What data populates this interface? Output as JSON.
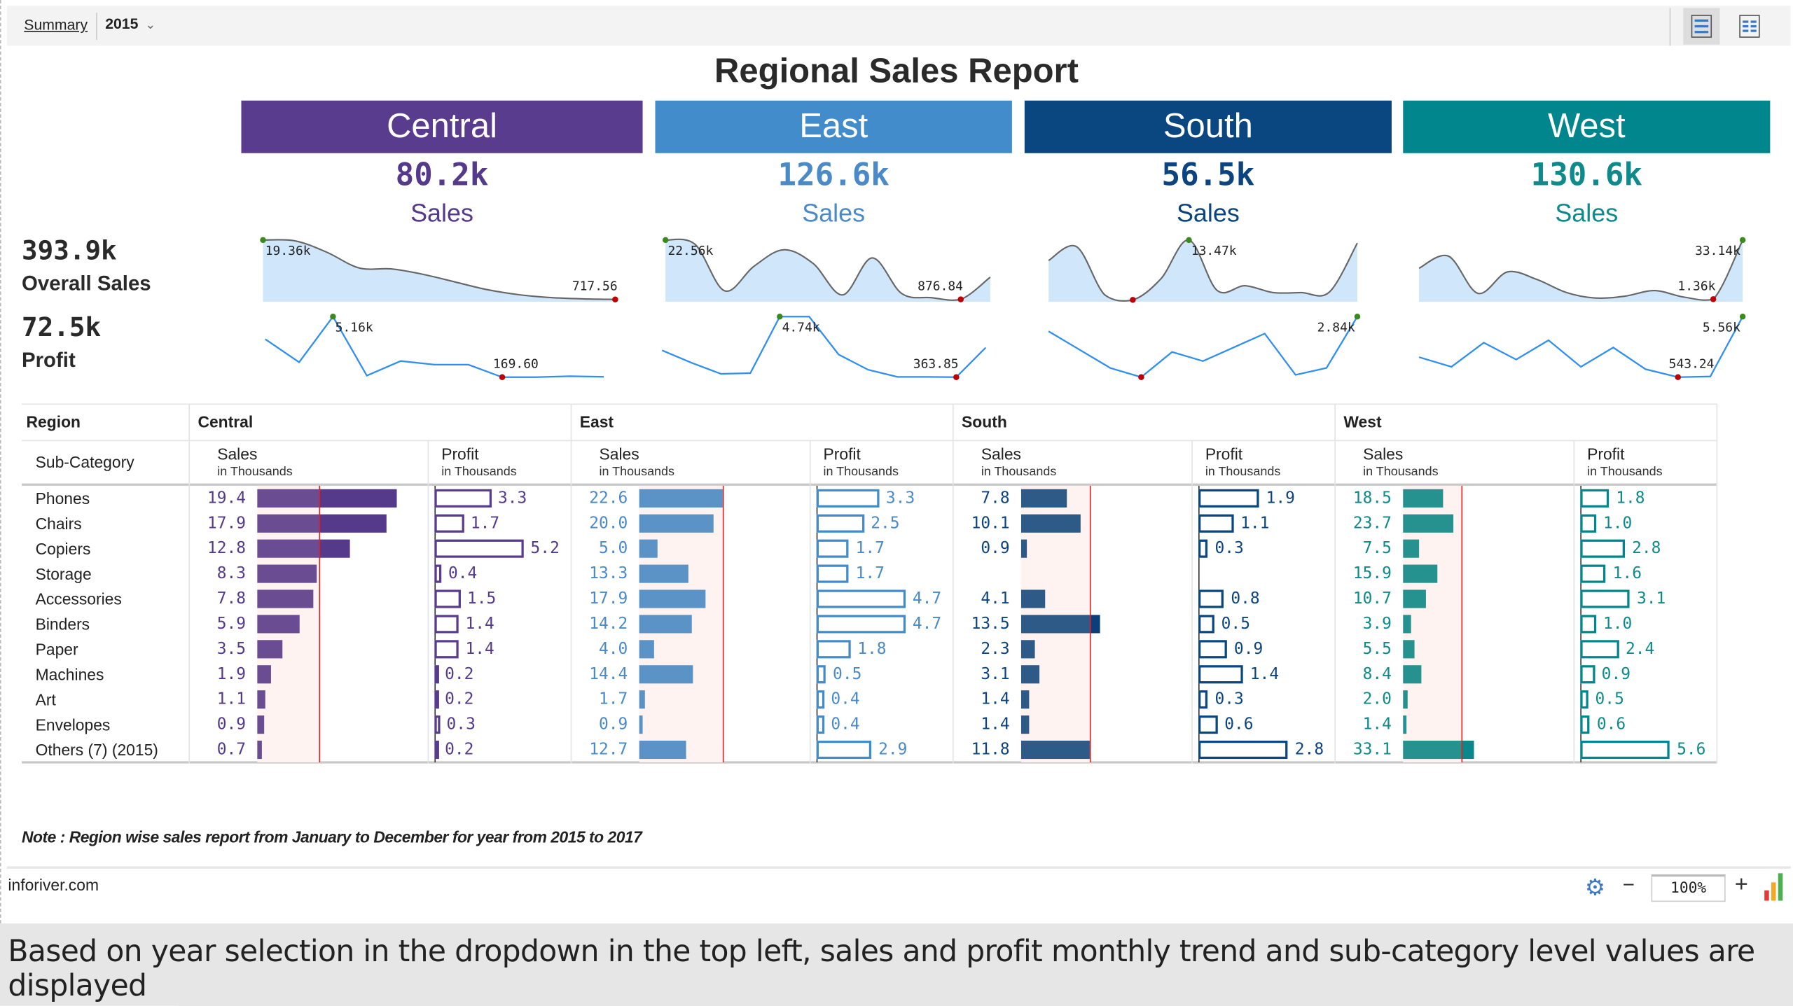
{
  "toolbar": {
    "breadcrumb": "Summary",
    "year_selected": "2015",
    "views": [
      "single-column-view-icon",
      "two-column-view-icon"
    ]
  },
  "title": "Regional Sales Report",
  "overall": {
    "sales_value": "393.9k",
    "sales_label": "Overall Sales",
    "profit_value": "72.5k",
    "profit_label": "Profit"
  },
  "regions": [
    {
      "name": "Central",
      "sales_total": "80.2k",
      "sales_label": "Sales",
      "color": "#5a3c8f",
      "text_color": "#553a8c",
      "bar_color": "#6a4c93",
      "bar_dark": "#553a8c",
      "spark_sales": {
        "values": [
          19.36,
          19.1,
          15.5,
          10.6,
          10.3,
          8.6,
          6.2,
          3.8,
          2.2,
          1.3,
          0.9,
          0.72
        ],
        "max_label": "19.36k",
        "min_label": "717.56"
      },
      "spark_profit": {
        "values": [
          3.3,
          1.4,
          5.16,
          0.3,
          1.5,
          1.2,
          1.2,
          0.17,
          0.17,
          0.25,
          0.2
        ],
        "max_label": "5.16k",
        "min_label": "169.60"
      }
    },
    {
      "name": "East",
      "sales_total": "126.6k",
      "sales_label": "Sales",
      "color": "#438ccb",
      "text_color": "#4a8ac8",
      "bar_color": "#5b93c7",
      "bar_dark": "#438ccb",
      "spark_sales": {
        "values": [
          22.56,
          21,
          4,
          13,
          19,
          14,
          2.5,
          16,
          3,
          1.5,
          0.88,
          9
        ],
        "max_label": "22.56k",
        "min_label": "876.84"
      },
      "spark_profit": {
        "values": [
          2.3,
          1.4,
          0.6,
          0.65,
          4.74,
          4.74,
          2.0,
          0.9,
          0.38,
          0.38,
          0.36,
          2.5
        ],
        "max_label": "4.74k",
        "min_label": "363.85"
      }
    },
    {
      "name": "South",
      "sales_total": "56.5k",
      "sales_label": "Sales",
      "color": "#0a4680",
      "text_color": "#0b4480",
      "bar_color": "#2d5a87",
      "bar_dark": "#0a3f7a",
      "spark_sales": {
        "values": [
          9,
          12,
          1.5,
          0.4,
          5,
          13.47,
          2.5,
          3.5,
          2,
          2,
          2.1,
          12.8
        ],
        "max_label": "13.47k",
        "min_label": ""
      },
      "spark_profit": {
        "values": [
          2.2,
          1.4,
          0.6,
          0.2,
          1.3,
          0.9,
          1.5,
          2.1,
          0.3,
          0.6,
          2.84
        ],
        "max_label": "2.84k",
        "min_label": ""
      }
    },
    {
      "name": "West",
      "sales_total": "130.6k",
      "sales_label": "Sales",
      "color": "#00868c",
      "text_color": "#0f8a8c",
      "bar_color": "#25928f",
      "bar_dark": "#0a878a",
      "spark_sales": {
        "values": [
          18,
          24.5,
          4.5,
          16,
          12,
          5,
          2,
          3,
          6,
          2.5,
          1.36,
          33.14
        ],
        "max_label": "33.14k",
        "min_label": "1.36k"
      },
      "spark_profit": {
        "values": [
          2.2,
          1.4,
          3.4,
          2.0,
          3.6,
          1.4,
          3.0,
          1.2,
          0.54,
          0.6,
          5.56
        ],
        "max_label": "5.56k",
        "min_label": "543.24"
      }
    }
  ],
  "table": {
    "region_header": "Region",
    "subcategory_header": "Sub-Category",
    "sales_header": "Sales",
    "profit_header": "Profit",
    "unit_label": "in Thousands",
    "subcategories": [
      "Phones",
      "Chairs",
      "Copiers",
      "Storage",
      "Accessories",
      "Binders",
      "Paper",
      "Machines",
      "Art",
      "Envelopes",
      "Others (7) (2015)"
    ],
    "values": {
      "Central": {
        "sales": [
          "19.4",
          "17.9",
          "12.8",
          "8.3",
          "7.8",
          "5.9",
          "3.5",
          "1.9",
          "1.1",
          "0.9",
          "0.7"
        ],
        "profit": [
          "3.3",
          "1.7",
          "5.2",
          "0.4",
          "1.5",
          "1.4",
          "1.4",
          "0.2",
          "0.2",
          "0.3",
          "0.2"
        ]
      },
      "East": {
        "sales": [
          "22.6",
          "20.0",
          "5.0",
          "13.3",
          "17.9",
          "14.2",
          "4.0",
          "14.4",
          "1.7",
          "0.9",
          "12.7"
        ],
        "profit": [
          "3.3",
          "2.5",
          "1.7",
          "1.7",
          "4.7",
          "4.7",
          "1.8",
          "0.5",
          "0.4",
          "0.4",
          "2.9"
        ]
      },
      "South": {
        "sales": [
          "7.8",
          "10.1",
          "0.9",
          null,
          "4.1",
          "13.5",
          "2.3",
          "3.1",
          "1.4",
          "1.4",
          "11.8"
        ],
        "profit": [
          "1.9",
          "1.1",
          "0.3",
          null,
          "0.8",
          "0.5",
          "0.9",
          "1.4",
          "0.3",
          "0.6",
          "2.8"
        ]
      },
      "West": {
        "sales": [
          "18.5",
          "23.7",
          "7.5",
          "15.9",
          "10.7",
          "3.9",
          "5.5",
          "8.4",
          "2.0",
          "1.4",
          "33.1"
        ],
        "profit": [
          "1.8",
          "1.0",
          "2.8",
          "1.6",
          "3.1",
          "1.0",
          "2.4",
          "0.9",
          "0.5",
          "0.6",
          "5.6"
        ]
      }
    }
  },
  "note": "Note : Region wise sales report from January to December for year from 2015 to 2017",
  "footer": {
    "site": "inforiver.com",
    "zoom": "100%",
    "minus": "−",
    "plus": "+"
  },
  "caption": "Based on year selection in the dropdown in the top left, sales and profit monthly trend and sub-category level values are displayed",
  "colors": {
    "max_marker": "#3a8a1e",
    "min_marker": "#c00000",
    "reference_line": "#e02020",
    "spark_fill": "#cfe6fb",
    "spark_sales_line": "#666666",
    "spark_profit_line": "#2f8ff0"
  }
}
